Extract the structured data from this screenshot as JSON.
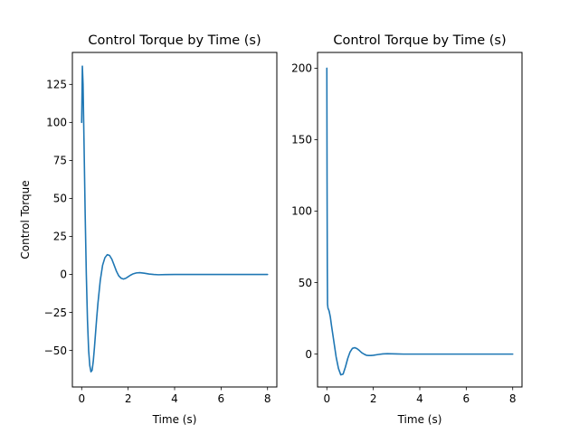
{
  "chart_data": [
    {
      "type": "line",
      "title": "Control Torque by Time (s)",
      "xlabel": "Time (s)",
      "ylabel": "Control Torque",
      "xlim": [
        -0.4,
        8.4
      ],
      "ylim": [
        -74,
        146
      ],
      "xticks": [
        0,
        2,
        4,
        6,
        8
      ],
      "yticks": [
        -50,
        -25,
        0,
        25,
        50,
        75,
        100,
        125
      ],
      "xtick_labels": [
        "0",
        "2",
        "4",
        "6",
        "8"
      ],
      "ytick_labels": [
        "−50",
        "−25",
        "0",
        "25",
        "50",
        "75",
        "100",
        "125"
      ],
      "grid": false,
      "series": [
        {
          "color": "#1f77b4",
          "x": [
            0,
            0.03,
            0.06,
            0.1,
            0.15,
            0.2,
            0.25,
            0.3,
            0.35,
            0.4,
            0.45,
            0.5,
            0.55,
            0.6,
            0.65,
            0.7,
            0.8,
            0.9,
            1.0,
            1.1,
            1.2,
            1.3,
            1.4,
            1.5,
            1.6,
            1.7,
            1.8,
            1.9,
            2.0,
            2.1,
            2.2,
            2.35,
            2.5,
            2.7,
            2.9,
            3.1,
            3.3,
            3.6,
            4.0,
            5.0,
            6.0,
            7.0,
            8.0
          ],
          "y": [
            100,
            137,
            125,
            88,
            40,
            0,
            -30,
            -50,
            -60,
            -64,
            -63,
            -57,
            -48,
            -38,
            -28,
            -19,
            -4,
            6,
            11,
            13,
            12.5,
            10,
            6,
            2,
            -1,
            -2.5,
            -3,
            -2.5,
            -1.5,
            -0.5,
            0.3,
            1,
            1.2,
            0.8,
            0.3,
            0,
            -0.2,
            -0.1,
            0,
            0,
            0,
            0,
            0
          ]
        }
      ]
    },
    {
      "type": "line",
      "title": "Control Torque by Time (s)",
      "xlabel": "Time (s)",
      "ylabel": "",
      "xlim": [
        -0.4,
        8.4
      ],
      "ylim": [
        -23,
        211
      ],
      "xticks": [
        0,
        2,
        4,
        6,
        8
      ],
      "yticks": [
        0,
        50,
        100,
        150,
        200
      ],
      "xtick_labels": [
        "0",
        "2",
        "4",
        "6",
        "8"
      ],
      "ytick_labels": [
        "0",
        "50",
        "100",
        "150",
        "200"
      ],
      "grid": false,
      "series": [
        {
          "color": "#1f77b4",
          "x": [
            0,
            0.01,
            0.02,
            0.03,
            0.05,
            0.08,
            0.1,
            0.15,
            0.2,
            0.3,
            0.4,
            0.5,
            0.6,
            0.7,
            0.8,
            0.9,
            1.0,
            1.1,
            1.2,
            1.3,
            1.4,
            1.5,
            1.6,
            1.7,
            1.8,
            1.9,
            2.0,
            2.2,
            2.4,
            2.6,
            2.8,
            3.0,
            3.3,
            3.6,
            4.0,
            5.0,
            6.0,
            7.0,
            8.0
          ],
          "y": [
            200,
            120,
            60,
            35,
            32,
            31,
            30,
            26,
            20,
            9,
            -2,
            -10,
            -14.5,
            -14,
            -9,
            -3,
            1.5,
            4,
            4.5,
            3.8,
            2.5,
            1,
            0,
            -0.8,
            -1,
            -1,
            -0.8,
            -0.3,
            0.1,
            0.3,
            0.2,
            0.1,
            0,
            0,
            0,
            0,
            0,
            0,
            0
          ]
        }
      ]
    }
  ]
}
